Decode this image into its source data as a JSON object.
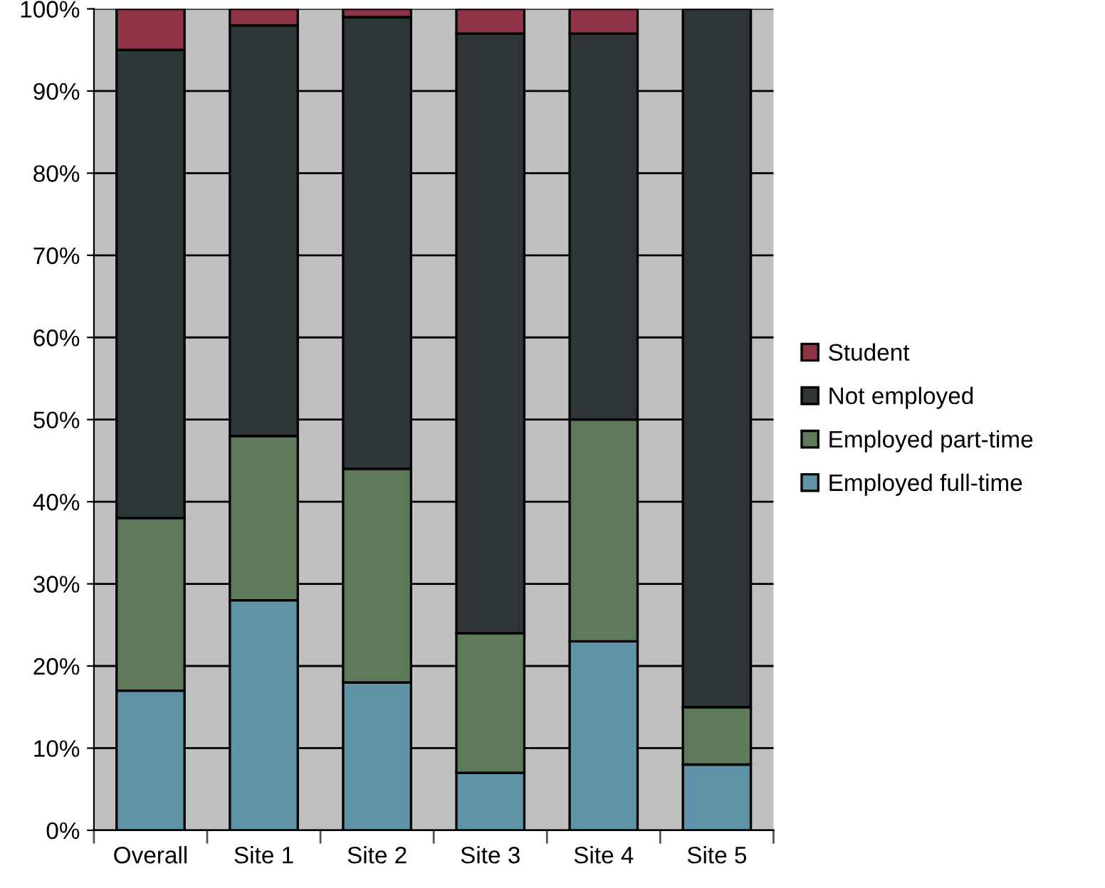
{
  "chart_data": {
    "type": "bar",
    "stacked": true,
    "categories": [
      "Overall",
      "Site 1",
      "Site 2",
      "Site 3",
      "Site 4",
      "Site 5"
    ],
    "series": [
      {
        "name": "Employed full-time",
        "color": "#5f93a8",
        "values": [
          17,
          28,
          18,
          7,
          23,
          8
        ]
      },
      {
        "name": "Employed part-time",
        "color": "#5f7a5a",
        "values": [
          21,
          20,
          26,
          17,
          27,
          7
        ]
      },
      {
        "name": "Not employed",
        "color": "#2e3537",
        "values": [
          57,
          50,
          55,
          73,
          47,
          85
        ]
      },
      {
        "name": "Student",
        "color": "#8f3447",
        "values": [
          5,
          2,
          1,
          3,
          3,
          null
        ]
      }
    ],
    "ylim": [
      0,
      100
    ],
    "yticks": [
      {
        "value": 0,
        "label": "0%"
      },
      {
        "value": 10,
        "label": "10%"
      },
      {
        "value": 20,
        "label": "20%"
      },
      {
        "value": 30,
        "label": "30%"
      },
      {
        "value": 40,
        "label": "40%"
      },
      {
        "value": 50,
        "label": "50%"
      },
      {
        "value": 60,
        "label": "60%"
      },
      {
        "value": 70,
        "label": "70%"
      },
      {
        "value": 80,
        "label": "80%"
      },
      {
        "value": 90,
        "label": "90%"
      },
      {
        "value": 100,
        "label": "100%"
      }
    ],
    "grid": "y",
    "legend": "right"
  }
}
